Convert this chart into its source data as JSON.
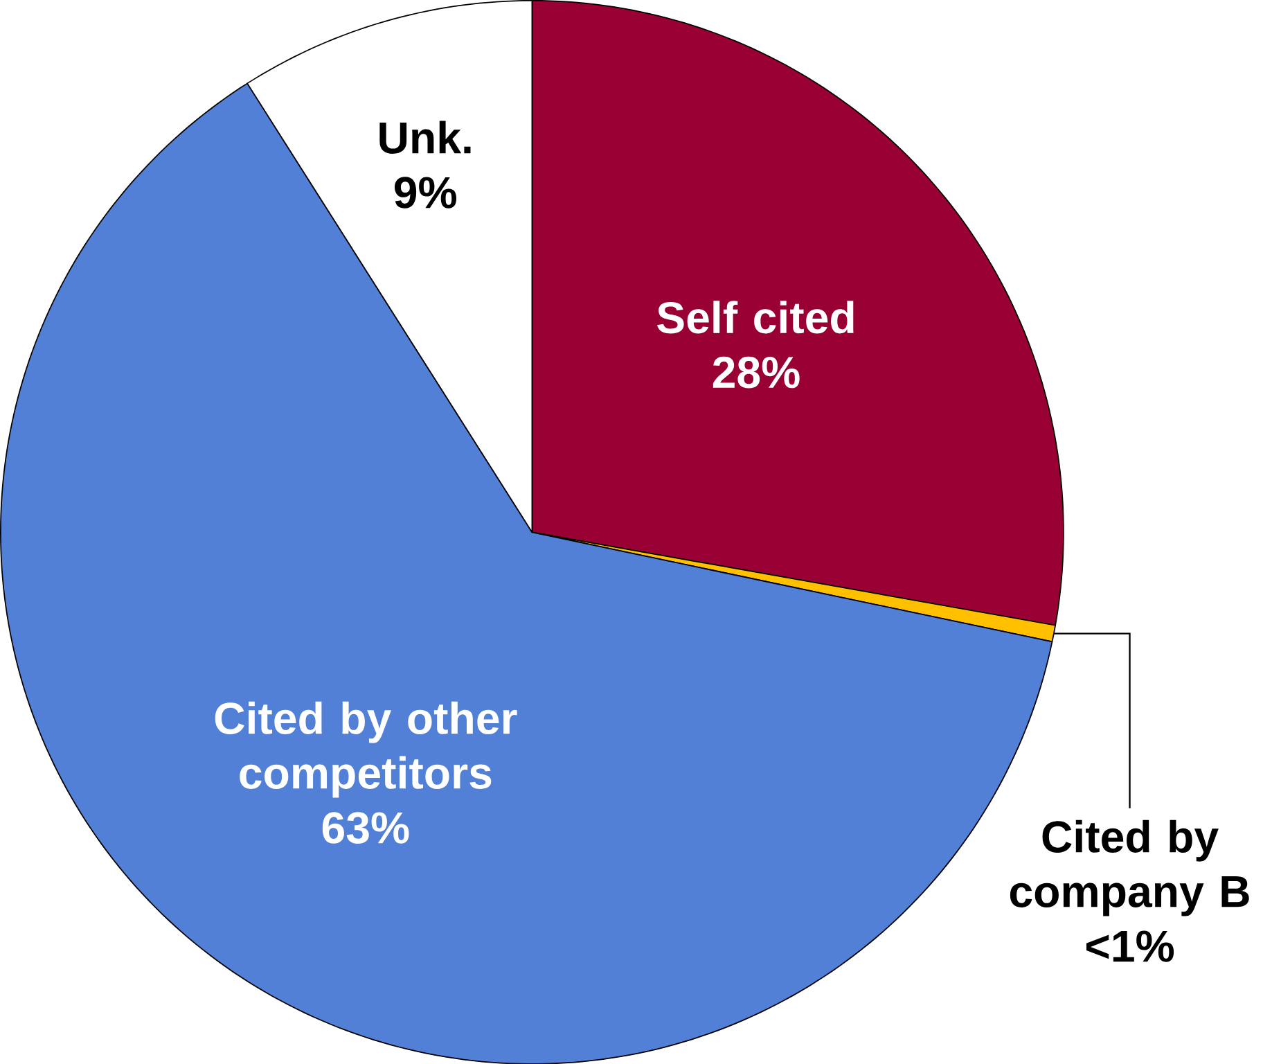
{
  "chart_data": {
    "type": "pie",
    "categories": [
      "Self cited",
      "Cited by company B",
      "Cited by other competitors",
      "Unk."
    ],
    "values": [
      27.8,
      0.5,
      62.7,
      9.0
    ],
    "value_labels": [
      "28%",
      "<1%",
      "63%",
      "9%"
    ],
    "colors": [
      "#990033",
      "#ffc000",
      "#5280d6",
      "#ffffff"
    ]
  }
}
